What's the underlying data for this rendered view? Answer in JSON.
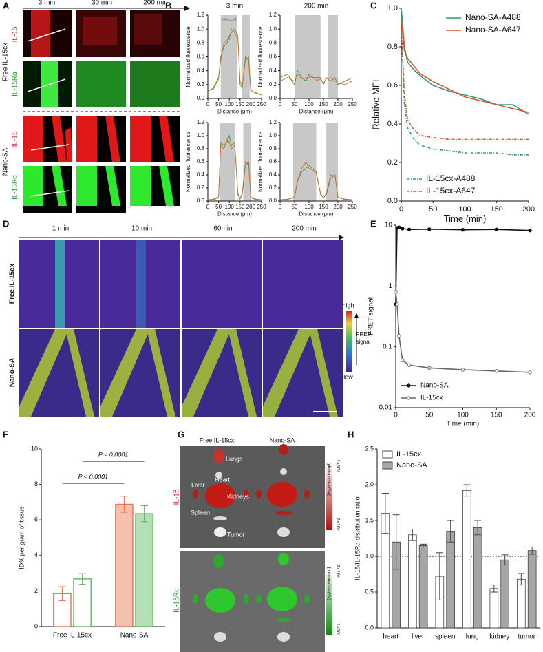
{
  "panel_labels": [
    "A",
    "B",
    "C",
    "D",
    "E",
    "F",
    "G",
    "H"
  ],
  "figure_a": {
    "times": [
      "3 min",
      "30 min",
      "200 min"
    ],
    "groups": [
      "Free IL-15cx",
      "Nano-SA"
    ],
    "channels": [
      "IL-15",
      "IL-15Rα",
      "IL-15",
      "IL-15Rα"
    ]
  },
  "figure_d": {
    "times": [
      "1 min",
      "10 min",
      "60min",
      "200 min"
    ],
    "rows": [
      "Free IL-15cx",
      "Nano-SA"
    ],
    "colorbar": {
      "high": "high",
      "low": "low",
      "label": [
        "FRET",
        "signal"
      ]
    }
  },
  "figure_g": {
    "columns": [
      "Free IL-15cx",
      "Nano-SA"
    ],
    "rows": [
      "IL-15",
      "IL-15Rα"
    ],
    "organs": [
      "Lungs",
      "Heart",
      "Liver",
      "Kidneys",
      "Spleen",
      "Tumor"
    ],
    "scale_top": [
      "1×10⁹",
      "2×10⁸"
    ],
    "scale_bottom": [
      "2×10⁹",
      "1×10⁷"
    ],
    "units": [
      "[photons/s/cm²/sr]",
      "[photons/s/cm²/sr]"
    ]
  },
  "chart_data": [
    {
      "type": "line",
      "title": "3 min",
      "annotation": "Vessel",
      "xlabel": "Distance (μm)",
      "ylabel": "Normalized fluorescence",
      "x": [
        0,
        25,
        50,
        60,
        75,
        90,
        100,
        110,
        125,
        140,
        150,
        160,
        175,
        190,
        200,
        225,
        250
      ],
      "series": [
        {
          "color": "#3a9a3a",
          "values": [
            0.1,
            0.15,
            0.3,
            0.6,
            0.75,
            0.8,
            0.9,
            0.95,
            1.0,
            0.9,
            0.2,
            0.15,
            0.6,
            0.55,
            0.1,
            0.08,
            0.05
          ]
        },
        {
          "color": "#e06a2c",
          "values": [
            0.12,
            0.13,
            0.28,
            0.55,
            0.8,
            0.85,
            0.85,
            1.0,
            0.95,
            0.85,
            0.25,
            0.18,
            0.55,
            0.6,
            0.12,
            0.07,
            0.06
          ]
        }
      ],
      "bands": [
        [
          60,
          135
        ],
        [
          160,
          195
        ]
      ],
      "xlim": [
        0,
        250
      ],
      "ylim": [
        0,
        1.2
      ],
      "xticks": [
        0,
        50,
        100,
        150,
        200,
        250
      ],
      "yticks": [
        {
          "value": 0,
          "label": "0.0"
        },
        0.2,
        0.4,
        0.6,
        0.8,
        {
          "value": 1,
          "label": "1.0"
        },
        1.2
      ]
    },
    {
      "type": "line",
      "title": "200 min",
      "xlabel": "Distance (μm)",
      "ylabel": "Normalized fluorescence",
      "x": [
        0,
        25,
        50,
        60,
        75,
        90,
        100,
        110,
        125,
        140,
        150,
        160,
        175,
        190,
        200,
        225,
        250
      ],
      "series": [
        {
          "color": "#3a9a3a",
          "values": [
            0.3,
            0.35,
            0.2,
            0.4,
            0.3,
            0.25,
            0.35,
            0.3,
            0.3,
            0.3,
            0.2,
            0.3,
            0.25,
            0.3,
            0.2,
            0.25,
            0.3
          ]
        },
        {
          "color": "#e06a2c",
          "values": [
            0.25,
            0.3,
            0.25,
            0.35,
            0.28,
            0.3,
            0.3,
            0.32,
            0.26,
            0.28,
            0.22,
            0.28,
            0.3,
            0.25,
            0.22,
            0.2,
            0.25
          ]
        }
      ],
      "bands": [
        [
          50,
          140
        ],
        [
          165,
          200
        ]
      ],
      "xlim": [
        0,
        250
      ],
      "ylim": [
        0,
        1.2
      ],
      "xticks": [
        0,
        50,
        100,
        150,
        200,
        250
      ],
      "yticks": [
        {
          "value": 0,
          "label": "0.0"
        },
        0.2,
        0.4,
        0.6,
        0.8,
        {
          "value": 1,
          "label": "1.0"
        },
        1.2
      ]
    },
    {
      "type": "line",
      "xlabel": "Distance (μm)",
      "ylabel": "Normalized fluorescence",
      "x": [
        0,
        25,
        50,
        60,
        75,
        90,
        100,
        110,
        125,
        140,
        150,
        160,
        175,
        190,
        200,
        225,
        250
      ],
      "series": [
        {
          "color": "#3a9a3a",
          "values": [
            0.02,
            0.02,
            0.05,
            0.9,
            0.85,
            0.9,
            1.0,
            0.85,
            0.9,
            0.1,
            0.03,
            0.1,
            0.55,
            0.6,
            0.05,
            0.02,
            0.02
          ]
        },
        {
          "color": "#e06a2c",
          "values": [
            0.02,
            0.03,
            0.06,
            0.85,
            0.8,
            0.95,
            0.9,
            0.8,
            0.85,
            0.12,
            0.04,
            0.12,
            0.6,
            0.55,
            0.06,
            0.03,
            0.02
          ]
        }
      ],
      "bands": [
        [
          55,
          125
        ],
        [
          165,
          200
        ]
      ],
      "xlim": [
        0,
        250
      ],
      "ylim": [
        0,
        1.2
      ],
      "xticks": [
        0,
        50,
        100,
        150,
        200,
        250
      ],
      "yticks": [
        {
          "value": 0,
          "label": "0.0"
        },
        0.2,
        0.4,
        0.6,
        0.8,
        {
          "value": 1,
          "label": "1.0"
        },
        1.2
      ]
    },
    {
      "type": "line",
      "xlabel": "Distance (μm)",
      "ylabel": "Normalized fluorescence",
      "x": [
        0,
        25,
        50,
        60,
        75,
        90,
        100,
        110,
        125,
        140,
        150,
        160,
        175,
        190,
        200,
        225,
        250
      ],
      "series": [
        {
          "color": "#3a9a3a",
          "values": [
            0.02,
            0.03,
            0.05,
            0.3,
            0.45,
            0.5,
            0.55,
            0.5,
            0.45,
            0.1,
            0.05,
            0.1,
            0.35,
            0.4,
            0.05,
            0.03,
            0.02
          ]
        },
        {
          "color": "#e06a2c",
          "values": [
            0.02,
            0.02,
            0.06,
            0.32,
            0.5,
            0.6,
            0.5,
            0.48,
            0.42,
            0.12,
            0.05,
            0.12,
            0.4,
            0.38,
            0.06,
            0.02,
            0.02
          ]
        }
      ],
      "bands": [
        [
          45,
          125
        ],
        [
          160,
          200
        ]
      ],
      "xlim": [
        0,
        250
      ],
      "ylim": [
        0,
        1.2
      ],
      "xticks": [
        0,
        50,
        100,
        150,
        200,
        250
      ],
      "yticks": [
        {
          "value": 0,
          "label": "0.0"
        },
        0.2,
        0.4,
        0.6,
        0.8,
        {
          "value": 1,
          "label": "1.0"
        },
        1.2
      ]
    },
    {
      "type": "line",
      "xlabel": "Time (min)",
      "ylabel": "Relative MFI",
      "x": [
        0,
        5,
        10,
        20,
        30,
        50,
        75,
        100,
        125,
        150,
        175,
        200
      ],
      "series": [
        {
          "name": "Nano-SA-A488",
          "color": "#2a9d78",
          "legend": "upper right",
          "values": [
            1.0,
            0.8,
            0.72,
            0.68,
            0.65,
            0.6,
            0.57,
            0.55,
            0.53,
            0.5,
            0.5,
            0.45
          ]
        },
        {
          "name": "Nano-SA-A647",
          "color": "#e0522c",
          "legend": "upper right",
          "values": [
            0.95,
            0.78,
            0.74,
            0.7,
            0.66,
            0.62,
            0.58,
            0.54,
            0.52,
            0.5,
            0.48,
            0.46
          ]
        },
        {
          "name": "IL-15cx-A488",
          "color": "#2a9d78",
          "dashed": true,
          "legend": "lower left",
          "values": [
            0.9,
            0.5,
            0.38,
            0.32,
            0.29,
            0.27,
            0.26,
            0.25,
            0.25,
            0.25,
            0.24,
            0.24
          ]
        },
        {
          "name": "IL-15cx-A647",
          "color": "#e0522c",
          "dashed": true,
          "legend": "lower left",
          "values": [
            0.92,
            0.55,
            0.42,
            0.37,
            0.34,
            0.33,
            0.32,
            0.32,
            0.32,
            0.32,
            0.32,
            0.32
          ]
        }
      ],
      "xlim": [
        0,
        200
      ],
      "ylim": [
        0,
        1
      ],
      "xticks": [
        0,
        50,
        100,
        150,
        200
      ],
      "yticks": [
        {
          "value": 0,
          "label": "0.0"
        },
        0.2,
        0.4,
        0.6,
        0.8,
        {
          "value": 1,
          "label": "1.0"
        }
      ]
    },
    {
      "type": "line",
      "xlabel": "Time (min)",
      "ylabel": "FRET signal",
      "log_scale": true,
      "legend": "lower left",
      "x": [
        0,
        2,
        5,
        10,
        20,
        50,
        100,
        150,
        200
      ],
      "series": [
        {
          "name": "Nano-SA",
          "color": "#111111",
          "marker": "filled",
          "values": [
            0.5,
            9,
            9.2,
            8.8,
            8.5,
            8.6,
            8.4,
            8.5,
            8.2
          ]
        },
        {
          "name": "IL-15cx",
          "color": "#666666",
          "marker": "open",
          "values": [
            0.8,
            0.5,
            0.15,
            0.06,
            0.05,
            0.045,
            0.042,
            0.04,
            0.038
          ]
        }
      ],
      "xlim": [
        0,
        200
      ],
      "ylim": [
        0.01,
        10
      ],
      "xticks": [
        0,
        50,
        100,
        150,
        200
      ],
      "yticks": [
        0.01,
        0.1,
        1,
        10
      ]
    },
    {
      "type": "bar",
      "ylabel": "ID% per gram of tissue",
      "categories": [
        "Free IL-15cx",
        "Nano-SA"
      ],
      "filled": [
        false,
        true
      ],
      "series": [
        {
          "color": "#e8734f",
          "values": [
            1.85,
            6.88
          ],
          "errors": [
            0.4,
            0.45
          ]
        },
        {
          "color": "#5cb85c",
          "values": [
            2.68,
            6.35
          ],
          "errors": [
            0.3,
            0.45
          ]
        }
      ],
      "annotations": [
        "P < 0.0001",
        "P < 0.0001"
      ],
      "ylim": [
        0,
        10
      ],
      "yticks": [
        0,
        2,
        4,
        6,
        8,
        10
      ]
    },
    {
      "type": "bar",
      "ylabel": "IL-15/IL-15Rα distribution ratio",
      "legend": "upper left",
      "categories": [
        "heart",
        "liver",
        "spleen",
        "lung",
        "kidney",
        "tumor"
      ],
      "series": [
        {
          "name": "IL-15cx",
          "color": "#ffffff",
          "values": [
            1.6,
            1.3,
            0.72,
            1.92,
            0.55,
            0.68
          ],
          "errors": [
            0.28,
            0.08,
            0.33,
            0.08,
            0.05,
            0.08
          ]
        },
        {
          "name": "Nano-SA",
          "color": "#a6a6a6",
          "values": [
            1.2,
            1.15,
            1.35,
            1.4,
            0.95,
            1.08
          ],
          "errors": [
            0.38,
            0.02,
            0.15,
            0.1,
            0.07,
            0.05
          ]
        }
      ],
      "reference_line": 1,
      "ylim": [
        0,
        2.5
      ],
      "yticks": [
        {
          "value": 0,
          "label": "0.0"
        },
        0.5,
        {
          "value": 1,
          "label": "1.0"
        },
        1.5,
        {
          "value": 2,
          "label": "2.0"
        },
        2.5
      ]
    }
  ]
}
